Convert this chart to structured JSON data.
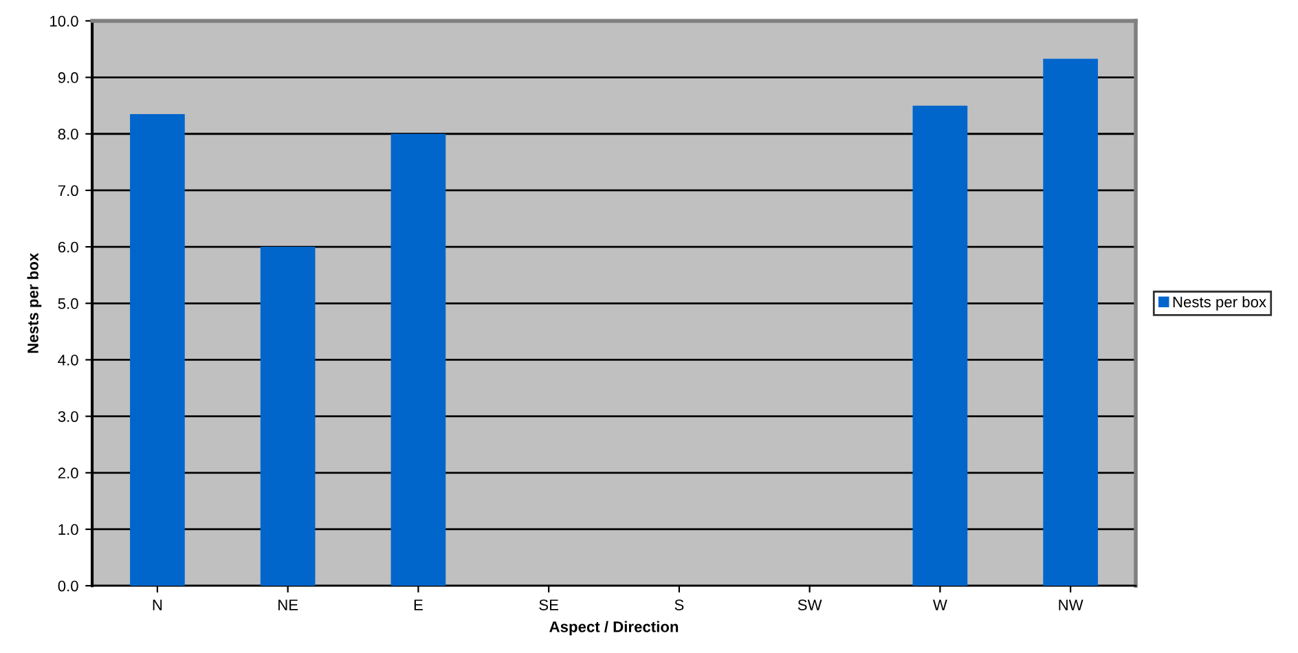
{
  "chart_data": {
    "type": "bar",
    "xlabel": "Aspect / Direction",
    "ylabel": "Nests per box",
    "categories": [
      "N",
      "NE",
      "E",
      "SE",
      "S",
      "SW",
      "W",
      "NW"
    ],
    "series": [
      {
        "name": "Nests per box",
        "color": "#0066cc",
        "values": [
          8.35,
          6.0,
          8.0,
          0,
          0,
          0,
          8.5,
          9.33
        ]
      }
    ],
    "ylim": [
      0,
      10
    ],
    "yticks": [
      {
        "value": 0,
        "label": "0.0"
      },
      {
        "value": 1,
        "label": "1.0"
      },
      {
        "value": 2,
        "label": "2.0"
      },
      {
        "value": 3,
        "label": "3.0"
      },
      {
        "value": 4,
        "label": "4.0"
      },
      {
        "value": 5,
        "label": "5.0"
      },
      {
        "value": 6,
        "label": "6.0"
      },
      {
        "value": 7,
        "label": "7.0"
      },
      {
        "value": 8,
        "label": "8.0"
      },
      {
        "value": 9,
        "label": "9.0"
      },
      {
        "value": 10,
        "label": "10.0"
      }
    ],
    "grid": "y",
    "legend": "right"
  }
}
